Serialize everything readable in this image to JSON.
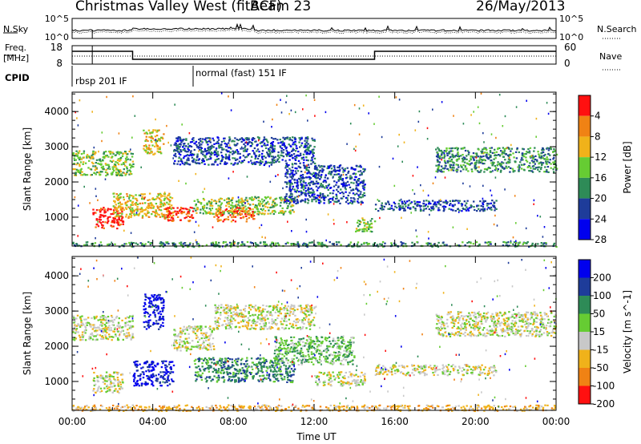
{
  "header": {
    "title": "Christmas Valley West (fitACF)",
    "beam": "Beam 23",
    "date": "26/May/2013"
  },
  "noise_panel": {
    "left_label": "N.Sky",
    "right_label": "N.Search",
    "ytick_top": "10^5",
    "ytick_bottom": "10^0"
  },
  "freq_panel": {
    "left_label_line1": "Freq.",
    "left_label_line2": "[MHz]",
    "right_label": "Nave",
    "left_ticks": [
      "18",
      "8"
    ],
    "right_ticks": [
      "60",
      "0"
    ],
    "freq_steps": [
      {
        "start_h": 0,
        "end_h": 3,
        "level": "high"
      },
      {
        "start_h": 3,
        "end_h": 15,
        "level": "low"
      },
      {
        "start_h": 15,
        "end_h": 24,
        "level": "high"
      }
    ]
  },
  "cpid": {
    "label": "CPID",
    "segments": [
      {
        "start_h": 0,
        "text": "rbsp 201 IF"
      },
      {
        "start_h": 6,
        "text": "normal (fast) 151 IF"
      }
    ]
  },
  "colors": {
    "power_scale": [
      "#0000ee",
      "#1e3c9a",
      "#2e8b57",
      "#66cc33",
      "#f0b21a",
      "#f08214",
      "#ff1010"
    ],
    "velocity_scale": [
      "#0000ee",
      "#1e3c9a",
      "#2e8b57",
      "#66cc33",
      "#c8c8c8",
      "#f0b21a",
      "#f08214",
      "#ff1010"
    ],
    "ground_scatter": "#bebebe"
  },
  "chart_data": [
    {
      "type": "heatmap",
      "name": "power",
      "ylabel": "Slant Range [km]",
      "ylim": [
        180,
        4550
      ],
      "yticks": [
        "1000",
        "2000",
        "3000",
        "4000"
      ],
      "colorbar": {
        "label": "Power [dB]",
        "ticks": [
          "4",
          "8",
          "12",
          "16",
          "20",
          "24",
          "28"
        ]
      },
      "regions": [
        {
          "t0": 1.0,
          "t1": 2.5,
          "r0": 700,
          "r1": 1300,
          "level": 6
        },
        {
          "t0": 2.0,
          "t1": 5.0,
          "r0": 1000,
          "r1": 1700,
          "level": 4
        },
        {
          "t0": 4.5,
          "t1": 6.0,
          "r0": 900,
          "r1": 1300,
          "level": 6
        },
        {
          "t0": 3.5,
          "t1": 4.5,
          "r0": 2800,
          "r1": 3500,
          "level": 4
        },
        {
          "t0": 0.0,
          "t1": 3.0,
          "r0": 2200,
          "r1": 2900,
          "level": 3
        },
        {
          "t0": 6.0,
          "t1": 11.0,
          "r0": 1100,
          "r1": 1600,
          "level": 3
        },
        {
          "t0": 7.0,
          "t1": 9.0,
          "r0": 900,
          "r1": 1300,
          "level": 5
        },
        {
          "t0": 5.0,
          "t1": 12.0,
          "r0": 2500,
          "r1": 3300,
          "level": 1
        },
        {
          "t0": 10.5,
          "t1": 14.5,
          "r0": 1400,
          "r1": 2500,
          "level": 1
        },
        {
          "t0": 14.0,
          "t1": 15.0,
          "r0": 600,
          "r1": 1000,
          "level": 3
        },
        {
          "t0": 15.0,
          "t1": 21.0,
          "r0": 1200,
          "r1": 1500,
          "level": 1
        },
        {
          "t0": 18.0,
          "t1": 24.0,
          "r0": 2300,
          "r1": 3000,
          "level": 2
        },
        {
          "t0": 0.0,
          "t1": 24.0,
          "r0": 180,
          "r1": 320,
          "level": 2
        }
      ]
    },
    {
      "type": "heatmap",
      "name": "velocity",
      "xlabel": "Time UT",
      "ylabel": "Slant Range [km]",
      "ylim": [
        180,
        4550
      ],
      "xlim": [
        0,
        24
      ],
      "xticks": [
        "00:00",
        "04:00",
        "08:00",
        "12:00",
        "16:00",
        "20:00",
        "00:00"
      ],
      "yticks": [
        "1000",
        "2000",
        "3000",
        "4000"
      ],
      "colorbar": {
        "label": "Velocity [m s^-1]",
        "ticks": [
          "200",
          "100",
          "50",
          "15",
          "-15",
          "-50",
          "-100",
          "-200"
        ]
      },
      "regions": [
        {
          "t0": 0.0,
          "t1": 3.0,
          "r0": 2200,
          "r1": 2900,
          "level": 4
        },
        {
          "t0": 1.0,
          "t1": 2.5,
          "r0": 700,
          "r1": 1300,
          "level": 4
        },
        {
          "t0": 3.0,
          "t1": 5.0,
          "r0": 900,
          "r1": 1600,
          "level": 0
        },
        {
          "t0": 3.5,
          "t1": 4.5,
          "r0": 2500,
          "r1": 3500,
          "level": 0
        },
        {
          "t0": 5.0,
          "t1": 7.0,
          "r0": 1900,
          "r1": 2600,
          "level": 4
        },
        {
          "t0": 6.0,
          "t1": 11.0,
          "r0": 1000,
          "r1": 1700,
          "level": 2
        },
        {
          "t0": 7.0,
          "t1": 12.0,
          "r0": 2500,
          "r1": 3200,
          "level": 4
        },
        {
          "t0": 10.0,
          "t1": 14.0,
          "r0": 1500,
          "r1": 2300,
          "level": 3
        },
        {
          "t0": 12.0,
          "t1": 14.5,
          "r0": 900,
          "r1": 1300,
          "level": 4
        },
        {
          "t0": 15.0,
          "t1": 21.0,
          "r0": 1200,
          "r1": 1500,
          "level": 4
        },
        {
          "t0": 18.0,
          "t1": 24.0,
          "r0": 2300,
          "r1": 3000,
          "level": 4
        },
        {
          "t0": 0.0,
          "t1": 24.0,
          "r0": 180,
          "r1": 350,
          "level": 5
        }
      ]
    }
  ]
}
